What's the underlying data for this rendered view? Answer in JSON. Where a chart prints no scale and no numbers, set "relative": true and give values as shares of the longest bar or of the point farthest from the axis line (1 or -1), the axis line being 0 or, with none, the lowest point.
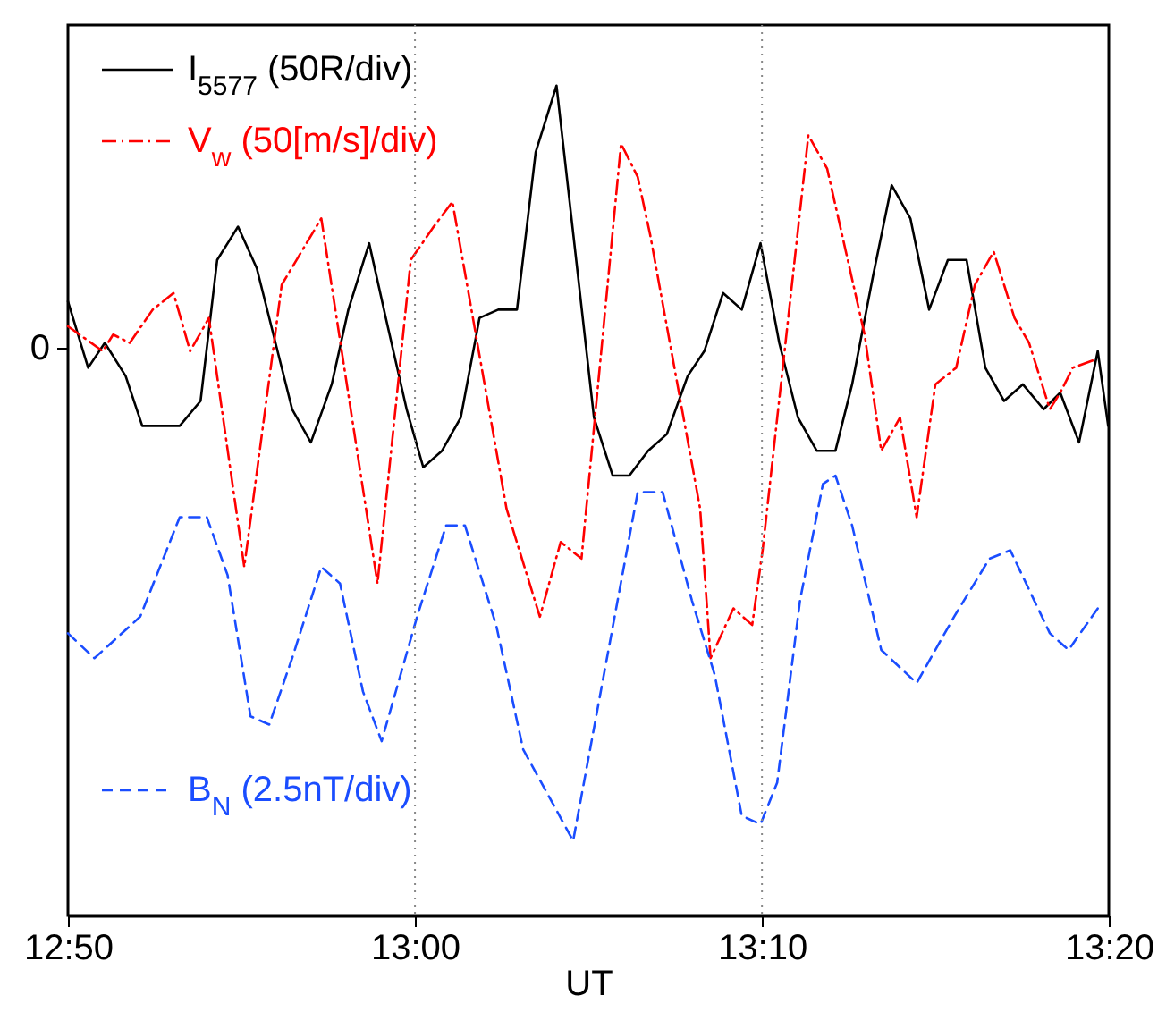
{
  "chart_data": {
    "type": "line",
    "xlabel": "UT",
    "relative": true,
    "annotations": [
      "0"
    ],
    "xlim": [
      12.8333,
      13.3333
    ],
    "xticks": [
      {
        "value": 12.8333,
        "label": "12:50"
      },
      {
        "value": 13.0,
        "label": "13:00"
      },
      {
        "value": 13.1667,
        "label": "13:10"
      },
      {
        "value": 13.3333,
        "label": "13:20"
      }
    ],
    "grid": false,
    "legend": "left",
    "marker": "none",
    "ref_lines": [
      {
        "axis": "x",
        "value": 13.0,
        "label": null,
        "color": "#888888",
        "line_style": "dotted"
      },
      {
        "axis": "x",
        "value": 13.1667,
        "label": null,
        "color": "#888888",
        "line_style": "dotted"
      }
    ],
    "series": [
      {
        "name": "I$_{5577}$ (50R/div)",
        "color": "#000000",
        "line_style": "solid",
        "x": [
          12.8333,
          12.843,
          12.851,
          12.861,
          12.869,
          12.878,
          12.887,
          12.897,
          12.905,
          12.915,
          12.924,
          12.932,
          12.941,
          12.95,
          12.96,
          12.968,
          12.978,
          12.986,
          12.996,
          13.004,
          13.013,
          13.022,
          13.031,
          13.04,
          13.049,
          13.058,
          13.068,
          13.086,
          13.095,
          13.103,
          13.112,
          13.121,
          13.131,
          13.139,
          13.148,
          13.157,
          13.166,
          13.175,
          13.184,
          13.193,
          13.202,
          13.21,
          13.22,
          13.229,
          13.238,
          13.247,
          13.256,
          13.265,
          13.274,
          13.283,
          13.292,
          13.302,
          13.31,
          13.319,
          13.328,
          13.333
        ],
        "values": [
          0.74,
          0.66,
          0.69,
          0.65,
          0.59,
          0.59,
          0.59,
          0.62,
          0.79,
          0.83,
          0.78,
          0.7,
          0.61,
          0.57,
          0.64,
          0.73,
          0.81,
          0.72,
          0.61,
          0.54,
          0.56,
          0.6,
          0.72,
          0.73,
          0.73,
          0.92,
          1,
          0.6,
          0.53,
          0.53,
          0.56,
          0.58,
          0.65,
          0.68,
          0.75,
          0.73,
          0.81,
          0.69,
          0.6,
          0.56,
          0.56,
          0.64,
          0.77,
          0.88,
          0.84,
          0.73,
          0.79,
          0.79,
          0.66,
          0.62,
          0.64,
          0.61,
          0.63,
          0.57,
          0.68,
          0.59
        ]
      },
      {
        "name": "V$_{w}$ (50[m/s]/div)",
        "color": "#ff0000",
        "line_style": "dashdot",
        "x": [
          12.8333,
          12.85,
          12.855,
          12.863,
          12.874,
          12.884,
          12.892,
          12.901,
          12.918,
          12.936,
          12.955,
          12.982,
          12.998,
          13.009,
          13.018,
          13.044,
          13.06,
          13.07,
          13.08,
          13.099,
          13.107,
          13.113,
          13.137,
          13.142,
          13.153,
          13.162,
          13.167,
          13.189,
          13.198,
          13.216,
          13.224,
          13.233,
          13.241,
          13.25,
          13.26,
          13.269,
          13.278,
          13.288,
          13.295,
          13.305,
          13.31,
          13.316,
          13.327
        ],
        "values": [
          0.71,
          0.68,
          0.7,
          0.69,
          0.73,
          0.75,
          0.68,
          0.72,
          0.42,
          0.76,
          0.84,
          0.4,
          0.79,
          0.83,
          0.86,
          0.49,
          0.36,
          0.45,
          0.43,
          0.93,
          0.89,
          0.82,
          0.49,
          0.31,
          0.37,
          0.35,
          0.44,
          0.94,
          0.9,
          0.7,
          0.56,
          0.6,
          0.48,
          0.64,
          0.66,
          0.76,
          0.8,
          0.72,
          0.69,
          0.61,
          0.63,
          0.66,
          0.67
        ]
      },
      {
        "name": "B$_{N}$ (2.5nT/div)",
        "color": "#1a4dff",
        "line_style": "dashed",
        "x": [
          12.8333,
          12.846,
          12.868,
          12.887,
          12.9,
          12.91,
          12.921,
          12.93,
          12.941,
          12.955,
          12.964,
          12.975,
          12.984,
          13.001,
          13.015,
          13.024,
          13.039,
          13.052,
          13.076,
          13.09,
          13.107,
          13.119,
          13.133,
          13.144,
          13.157,
          13.166,
          13.174,
          13.185,
          13.196,
          13.202,
          13.21,
          13.224,
          13.241,
          13.259,
          13.276,
          13.286,
          13.305,
          13.314,
          13.328,
          13.329
        ],
        "values": [
          0.34,
          0.31,
          0.36,
          0.48,
          0.48,
          0.41,
          0.24,
          0.23,
          0.31,
          0.42,
          0.4,
          0.27,
          0.21,
          0.36,
          0.47,
          0.47,
          0.35,
          0.2,
          0.09,
          0.28,
          0.51,
          0.51,
          0.38,
          0.29,
          0.12,
          0.11,
          0.16,
          0.38,
          0.52,
          0.53,
          0.47,
          0.32,
          0.28,
          0.36,
          0.43,
          0.44,
          0.34,
          0.32,
          0.37,
          0.37
        ]
      }
    ]
  }
}
